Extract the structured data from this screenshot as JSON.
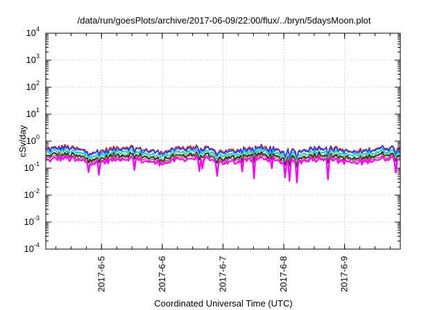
{
  "chart_data": {
    "type": "line",
    "title": "/data/run/goesPlots/archive/2017-06-09/22:00/flux/../bryn/5daysMoon.plot",
    "xlabel": "Coordinated Universal Time (UTC)",
    "ylabel": "cSv/day",
    "yscale": "log",
    "ylim": [
      0.0001,
      10000
    ],
    "xlim": [
      "2017-06-04T02:00",
      "2017-06-09T22:00"
    ],
    "grid": true,
    "x_ticks": [
      "2017-6-5",
      "2017-6-6",
      "2017-6-7",
      "2017-6-8",
      "2017-6-9"
    ],
    "y_ticks": [
      {
        "base": "10",
        "exp": "-4"
      },
      {
        "base": "10",
        "exp": "-3"
      },
      {
        "base": "10",
        "exp": "-2"
      },
      {
        "base": "10",
        "exp": "-1"
      },
      {
        "base": "10",
        "exp": "0"
      },
      {
        "base": "10",
        "exp": "1"
      },
      {
        "base": "10",
        "exp": "2"
      },
      {
        "base": "10",
        "exp": "3"
      },
      {
        "base": "10",
        "exp": "4"
      }
    ],
    "series": [
      {
        "color": "#cc2222",
        "level": 0.5
      },
      {
        "color": "#2244ff",
        "level": 0.46
      },
      {
        "color": "#00c8e0",
        "level": 0.36
      },
      {
        "color": "#8fd88f",
        "level": 0.31
      },
      {
        "color": "#222222",
        "level": 0.27
      },
      {
        "color": "#b06070",
        "level": 0.23
      },
      {
        "color": "#ff00ff",
        "level": 0.19
      }
    ]
  }
}
